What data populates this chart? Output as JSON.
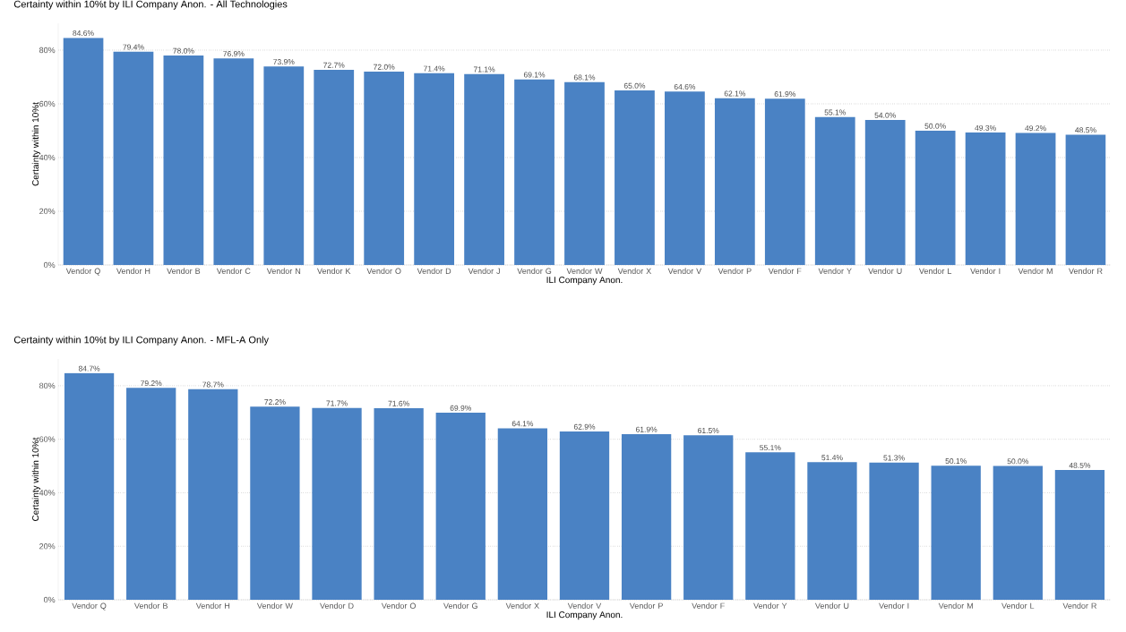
{
  "chart_data": [
    {
      "type": "bar",
      "title": "Certainty within 10%t by ILI Company Anon. - All Technologies",
      "xlabel": "ILI Company Anon.",
      "ylabel": "Certainty within 10%t",
      "categories": [
        "Vendor Q",
        "Vendor H",
        "Vendor B",
        "Vendor C",
        "Vendor N",
        "Vendor K",
        "Vendor O",
        "Vendor D",
        "Vendor J",
        "Vendor G",
        "Vendor W",
        "Vendor X",
        "Vendor V",
        "Vendor P",
        "Vendor F",
        "Vendor Y",
        "Vendor U",
        "Vendor L",
        "Vendor I",
        "Vendor M",
        "Vendor R"
      ],
      "values": [
        84.6,
        79.4,
        78.0,
        76.9,
        73.9,
        72.7,
        72.0,
        71.4,
        71.1,
        69.1,
        68.1,
        65.0,
        64.6,
        62.1,
        61.9,
        55.1,
        54.0,
        50.0,
        49.3,
        49.2,
        48.5
      ],
      "value_labels": [
        "84.6%",
        "79.4%",
        "78.0%",
        "76.9%",
        "73.9%",
        "72.7%",
        "72.0%",
        "71.4%",
        "71.1%",
        "69.1%",
        "68.1%",
        "65.0%",
        "64.6%",
        "62.1%",
        "61.9%",
        "55.1%",
        "54.0%",
        "50.0%",
        "49.3%",
        "49.2%",
        "48.5%"
      ],
      "color": "#4a82c4",
      "ylim": [
        0,
        90
      ],
      "yticks": [
        {
          "value": 0,
          "label": "0%"
        },
        {
          "value": 20,
          "label": "20%"
        },
        {
          "value": 40,
          "label": "40%"
        },
        {
          "value": 60,
          "label": "60%"
        },
        {
          "value": 80,
          "label": "80%"
        }
      ],
      "grid": "y"
    },
    {
      "type": "bar",
      "title": "Certainty within 10%t by ILI Company Anon. - MFL-A Only",
      "xlabel": "ILI Company Anon.",
      "ylabel": "Certainty within 10%t",
      "categories": [
        "Vendor Q",
        "Vendor B",
        "Vendor H",
        "Vendor W",
        "Vendor D",
        "Vendor O",
        "Vendor G",
        "Vendor X",
        "Vendor V",
        "Vendor P",
        "Vendor F",
        "Vendor Y",
        "Vendor U",
        "Vendor I",
        "Vendor M",
        "Vendor L",
        "Vendor R"
      ],
      "values": [
        84.7,
        79.2,
        78.7,
        72.2,
        71.7,
        71.6,
        69.9,
        64.1,
        62.9,
        61.9,
        61.5,
        55.1,
        51.4,
        51.3,
        50.1,
        50.0,
        48.5
      ],
      "value_labels": [
        "84.7%",
        "79.2%",
        "78.7%",
        "72.2%",
        "71.7%",
        "71.6%",
        "69.9%",
        "64.1%",
        "62.9%",
        "61.9%",
        "61.5%",
        "55.1%",
        "51.4%",
        "51.3%",
        "50.1%",
        "50.0%",
        "48.5%"
      ],
      "color": "#4a82c4",
      "ylim": [
        0,
        90
      ],
      "yticks": [
        {
          "value": 0,
          "label": "0%"
        },
        {
          "value": 20,
          "label": "20%"
        },
        {
          "value": 40,
          "label": "40%"
        },
        {
          "value": 60,
          "label": "60%"
        },
        {
          "value": 80,
          "label": "80%"
        }
      ],
      "grid": "y"
    }
  ]
}
